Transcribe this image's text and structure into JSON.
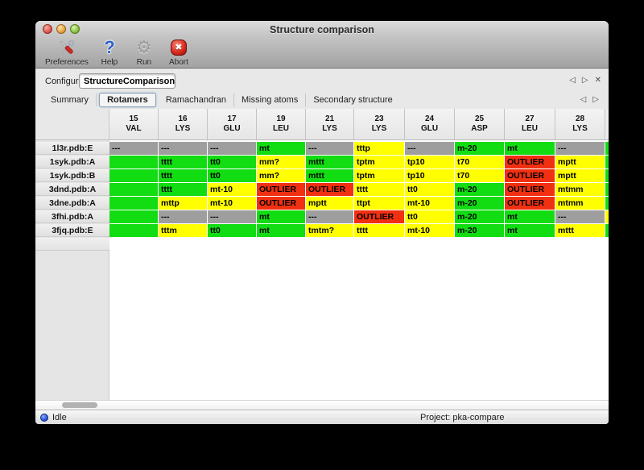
{
  "window": {
    "title": "Structure comparison"
  },
  "toolbar": {
    "buttons": [
      {
        "label": "Preferences",
        "icon": "tools-icon"
      },
      {
        "label": "Help",
        "icon": "question-icon"
      },
      {
        "label": "Run",
        "icon": "gear-icon"
      },
      {
        "label": "Abort",
        "icon": "abort-icon"
      }
    ]
  },
  "configure": {
    "label": "Configure",
    "value": "StructureComparison_1",
    "controls": {
      "prev": "◁",
      "next": "▷",
      "close": "✕"
    }
  },
  "tabs": {
    "items": [
      "Summary",
      "Rotamers",
      "Ramachandran",
      "Missing atoms",
      "Secondary structure"
    ],
    "selected": "Rotamers",
    "arrows": {
      "prev": "◁",
      "next": "▷"
    }
  },
  "table": {
    "columns": [
      {
        "num": "15",
        "res": "VAL"
      },
      {
        "num": "16",
        "res": "LYS"
      },
      {
        "num": "17",
        "res": "GLU"
      },
      {
        "num": "19",
        "res": "LEU"
      },
      {
        "num": "21",
        "res": "LYS"
      },
      {
        "num": "23",
        "res": "LYS"
      },
      {
        "num": "24",
        "res": "GLU"
      },
      {
        "num": "25",
        "res": "ASP"
      },
      {
        "num": "27",
        "res": "LEU"
      },
      {
        "num": "28",
        "res": "LYS"
      }
    ],
    "rows": [
      {
        "label": "1l3r.pdb:E",
        "cells": [
          [
            "---",
            "gray"
          ],
          [
            "---",
            "gray"
          ],
          [
            "---",
            "gray"
          ],
          [
            "mt",
            "green"
          ],
          [
            "---",
            "gray"
          ],
          [
            "tttp",
            "yellow"
          ],
          [
            "---",
            "gray"
          ],
          [
            "m-20",
            "green"
          ],
          [
            "mt",
            "green"
          ],
          [
            "---",
            "gray"
          ]
        ],
        "overflow": "green"
      },
      {
        "label": "1syk.pdb:A",
        "cells": [
          [
            "",
            "green"
          ],
          [
            "tttt",
            "green"
          ],
          [
            "tt0",
            "green"
          ],
          [
            "mm?",
            "yellow"
          ],
          [
            "mttt",
            "green"
          ],
          [
            "tptm",
            "yellow"
          ],
          [
            "tp10",
            "yellow"
          ],
          [
            "t70",
            "yellow"
          ],
          [
            "OUTLIER",
            "red"
          ],
          [
            "mptt",
            "yellow"
          ]
        ],
        "overflow": "green"
      },
      {
        "label": "1syk.pdb:B",
        "cells": [
          [
            "",
            "green"
          ],
          [
            "tttt",
            "green"
          ],
          [
            "tt0",
            "green"
          ],
          [
            "mm?",
            "yellow"
          ],
          [
            "mttt",
            "green"
          ],
          [
            "tptm",
            "yellow"
          ],
          [
            "tp10",
            "yellow"
          ],
          [
            "t70",
            "yellow"
          ],
          [
            "OUTLIER",
            "red"
          ],
          [
            "mptt",
            "yellow"
          ]
        ],
        "overflow": "green"
      },
      {
        "label": "3dnd.pdb:A",
        "cells": [
          [
            "",
            "green"
          ],
          [
            "tttt",
            "green"
          ],
          [
            "mt-10",
            "yellow"
          ],
          [
            "OUTLIER",
            "red"
          ],
          [
            "OUTLIER",
            "red"
          ],
          [
            "tttt",
            "yellow"
          ],
          [
            "tt0",
            "yellow"
          ],
          [
            "m-20",
            "green"
          ],
          [
            "OUTLIER",
            "red"
          ],
          [
            "mtmm",
            "yellow"
          ]
        ],
        "overflow": "green"
      },
      {
        "label": "3dne.pdb:A",
        "cells": [
          [
            "",
            "green"
          ],
          [
            "mttp",
            "yellow"
          ],
          [
            "mt-10",
            "yellow"
          ],
          [
            "OUTLIER",
            "red"
          ],
          [
            "mptt",
            "yellow"
          ],
          [
            "ttpt",
            "yellow"
          ],
          [
            "mt-10",
            "yellow"
          ],
          [
            "m-20",
            "green"
          ],
          [
            "OUTLIER",
            "red"
          ],
          [
            "mtmm",
            "yellow"
          ]
        ],
        "overflow": "green"
      },
      {
        "label": "3fhi.pdb:A",
        "cells": [
          [
            "",
            "green"
          ],
          [
            "---",
            "gray"
          ],
          [
            "---",
            "gray"
          ],
          [
            "mt",
            "green"
          ],
          [
            "---",
            "gray"
          ],
          [
            "OUTLIER",
            "red"
          ],
          [
            "tt0",
            "yellow"
          ],
          [
            "m-20",
            "green"
          ],
          [
            "mt",
            "green"
          ],
          [
            "---",
            "gray"
          ]
        ],
        "overflow": "yellow"
      },
      {
        "label": "3fjq.pdb:E",
        "cells": [
          [
            "",
            "green"
          ],
          [
            "tttm",
            "yellow"
          ],
          [
            "tt0",
            "green"
          ],
          [
            "mt",
            "green"
          ],
          [
            "tmtm?",
            "yellow"
          ],
          [
            "tttt",
            "yellow"
          ],
          [
            "mt-10",
            "yellow"
          ],
          [
            "m-20",
            "green"
          ],
          [
            "mt",
            "green"
          ],
          [
            "mttt",
            "yellow"
          ]
        ],
        "overflow": "green"
      }
    ]
  },
  "statusbar": {
    "status": "Idle",
    "project": "Project: pka-compare"
  },
  "colors": {
    "green": "#12dd12",
    "yellow": "#ffff00",
    "red": "#f13012",
    "gray": "#9e9e9e"
  }
}
